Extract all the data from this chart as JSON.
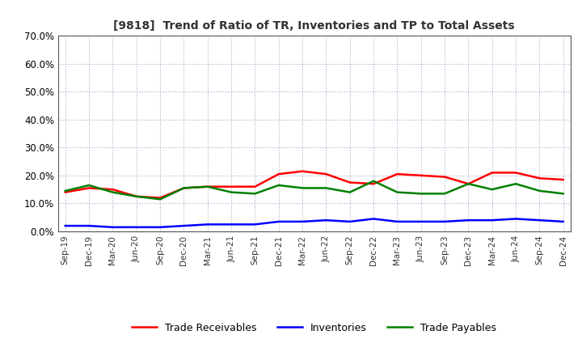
{
  "title": "[9818]  Trend of Ratio of TR, Inventories and TP to Total Assets",
  "x_labels": [
    "Sep-19",
    "Dec-19",
    "Mar-20",
    "Jun-20",
    "Sep-20",
    "Dec-20",
    "Mar-21",
    "Jun-21",
    "Sep-21",
    "Dec-21",
    "Mar-22",
    "Jun-22",
    "Sep-22",
    "Dec-22",
    "Mar-23",
    "Jun-23",
    "Sep-23",
    "Dec-23",
    "Mar-24",
    "Jun-24",
    "Sep-24",
    "Dec-24"
  ],
  "trade_receivables": [
    14.0,
    15.5,
    15.0,
    12.5,
    12.0,
    15.5,
    16.0,
    16.0,
    16.0,
    20.5,
    21.5,
    20.5,
    17.5,
    17.0,
    20.5,
    20.0,
    19.5,
    17.0,
    21.0,
    21.0,
    19.0,
    18.5
  ],
  "inventories": [
    2.0,
    2.0,
    1.5,
    1.5,
    1.5,
    2.0,
    2.5,
    2.5,
    2.5,
    3.5,
    3.5,
    4.0,
    3.5,
    4.5,
    3.5,
    3.5,
    3.5,
    4.0,
    4.0,
    4.5,
    4.0,
    3.5
  ],
  "trade_payables": [
    14.5,
    16.5,
    14.0,
    12.5,
    11.5,
    15.5,
    16.0,
    14.0,
    13.5,
    16.5,
    15.5,
    15.5,
    14.0,
    18.0,
    14.0,
    13.5,
    13.5,
    17.0,
    15.0,
    17.0,
    14.5,
    13.5
  ],
  "tr_color": "#ff0000",
  "inv_color": "#0000ff",
  "tp_color": "#008000",
  "ylim": [
    0.0,
    70.0
  ],
  "yticks": [
    0.0,
    10.0,
    20.0,
    30.0,
    40.0,
    50.0,
    60.0,
    70.0
  ],
  "background_color": "#ffffff",
  "grid_color": "#aaaacc",
  "legend_labels": [
    "Trade Receivables",
    "Inventories",
    "Trade Payables"
  ]
}
